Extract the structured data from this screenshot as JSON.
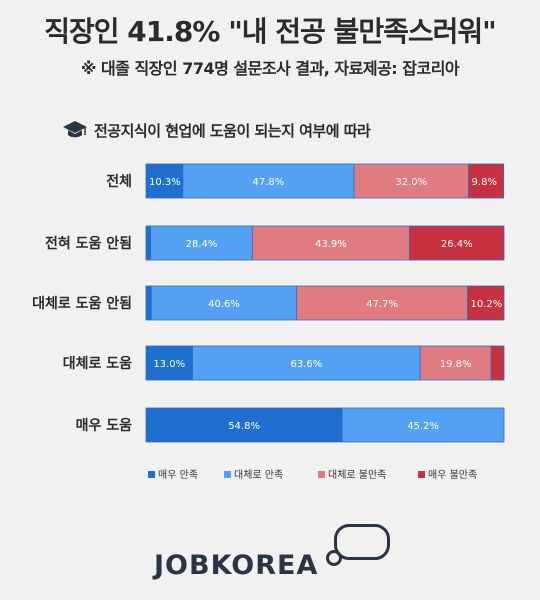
{
  "header": {
    "title": "직장인 41.8% \"내 전공 불만족스러워\"",
    "subtitle": "※ 대졸 직장인  774명 설문조사 결과,  자료제공: 잡코리아"
  },
  "section": {
    "label": "전공지식이 현업에 도움이 되는지 여부에 따라",
    "icon": "graduation-cap-icon"
  },
  "logo": {
    "text": "JOBKOREA"
  },
  "chart_data": {
    "type": "bar",
    "orientation": "horizontal",
    "stacked": true,
    "normalized": true,
    "categories": [
      "전체",
      "전혀 도움 안됨",
      "대체로 도움 안됨",
      "대체로 도움",
      "매우 도움"
    ],
    "series": [
      {
        "name": "매우 만족",
        "color": "#1f6fd1",
        "values": [
          10.3,
          1.3,
          1.5,
          13.0,
          54.8
        ],
        "labels": [
          "10.3%",
          "",
          "",
          "13.0%",
          "54.8%"
        ]
      },
      {
        "name": "대체로 만족",
        "color": "#54a0f2",
        "values": [
          47.8,
          28.4,
          40.6,
          63.6,
          45.2
        ],
        "labels": [
          "47.8%",
          "28.4%",
          "40.6%",
          "63.6%",
          "45.2%"
        ]
      },
      {
        "name": "대체로 불만족",
        "color": "#e07b80",
        "values": [
          32.0,
          43.9,
          47.7,
          19.8,
          0
        ],
        "labels": [
          "32.0%",
          "43.9%",
          "47.7%",
          "19.8%",
          ""
        ]
      },
      {
        "name": "매우 불만족",
        "color": "#c8303f",
        "values": [
          9.8,
          26.4,
          10.2,
          3.6,
          0
        ],
        "labels": [
          "9.8%",
          "26.4%",
          "10.2%",
          "",
          ""
        ]
      }
    ],
    "xlim": [
      0,
      100
    ],
    "legend": "bottom"
  }
}
